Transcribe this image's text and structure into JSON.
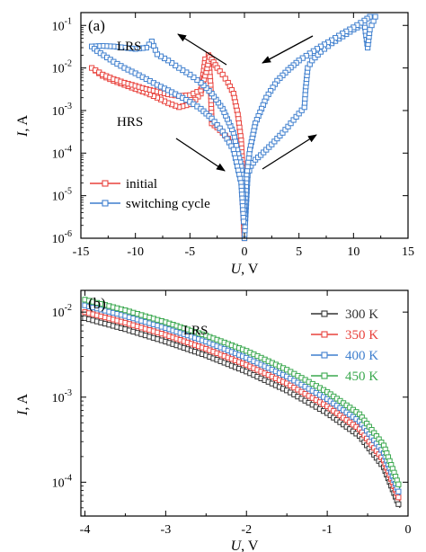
{
  "chart_data": [
    {
      "panel": "(a)",
      "type": "line",
      "y_scale": "log",
      "xlabel_italic": "U",
      "xlabel_rest": ", V",
      "ylabel_italic": "I",
      "ylabel_rest": ", A",
      "xlim": [
        -15,
        15
      ],
      "ylim": [
        1e-06,
        0.2
      ],
      "xticks": [
        -15,
        -10,
        -5,
        0,
        5,
        10,
        15
      ],
      "xtick_labels": [
        "-15",
        "-10",
        "-5",
        "0",
        "5",
        "10",
        "15"
      ],
      "yticks": [
        1e-06,
        1e-05,
        0.0001,
        0.001,
        0.01,
        0.1
      ],
      "ytick_base": "10",
      "ytick_exps": [
        "-6",
        "-5",
        "-4",
        "-3",
        "-2",
        "-1"
      ],
      "annotations": [
        "LRS",
        "HRS"
      ],
      "legend_position": "bottom-left",
      "series": [
        {
          "name": "initial",
          "color": "#e8423c",
          "x": [
            0,
            -0.3,
            -0.6,
            -1.0,
            -1.5,
            -2.0,
            -2.5,
            -3.0,
            -3.1,
            -3.3,
            -3.6,
            -4.0,
            -4.5,
            -5.0,
            -6.0,
            -7.0,
            -8.0,
            -9.0,
            -10.0,
            -11.0,
            -12.0,
            -13.0,
            -14.0,
            -13.0,
            -12.0,
            -11.0,
            -10.0,
            -9.0,
            -8.0,
            -7.0,
            -6.0,
            -5.0,
            -4.0,
            -3.5,
            -3.2,
            -3.0,
            -2.5,
            -2.0,
            -1.5,
            -1.0,
            -0.6,
            -0.3,
            -0.05
          ],
          "y": [
            1e-06,
            3e-05,
            8e-05,
            0.00015,
            0.00022,
            0.0003,
            0.0004,
            0.0005,
            0.004,
            0.02,
            0.016,
            0.0025,
            0.0018,
            0.0014,
            0.0012,
            0.0015,
            0.002,
            0.0026,
            0.0032,
            0.004,
            0.005,
            0.0065,
            0.01,
            0.007,
            0.0055,
            0.0045,
            0.0038,
            0.0032,
            0.0028,
            0.0024,
            0.0022,
            0.0023,
            0.003,
            0.008,
            0.018,
            0.016,
            0.01,
            0.007,
            0.0045,
            0.0025,
            0.0008,
            0.0002,
            1e-05
          ]
        },
        {
          "name": "switching cycle",
          "color": "#3f7fce",
          "x": [
            0,
            0.3,
            0.6,
            1.0,
            1.5,
            2.0,
            2.5,
            3.0,
            3.5,
            4.0,
            4.5,
            5.0,
            5.5,
            5.6,
            5.8,
            6.2,
            7.0,
            8.0,
            9.0,
            10.0,
            11.0,
            11.3,
            11.5,
            12.0,
            11.5,
            11.0,
            10.0,
            9.0,
            8.0,
            7.0,
            6.0,
            5.0,
            4.0,
            3.0,
            2.0,
            1.0,
            0.5,
            0.2,
            0.05,
            -0.3,
            -1.0,
            -2.0,
            -3.0,
            -4.0,
            -5.0,
            -6.0,
            -7.0,
            -8.0,
            -8.5,
            -9.0,
            -10.0,
            -11.0,
            -12.0,
            -13.0,
            -14.0,
            -13.5,
            -12.0,
            -11.0,
            -10.0,
            -9.0,
            -8.0,
            -7.0,
            -6.0,
            -5.0,
            -4.0,
            -3.0,
            -2.0,
            -1.0,
            -0.3,
            -0.05
          ],
          "y": [
            1e-06,
            3e-05,
            5e-05,
            7e-05,
            9e-05,
            0.00012,
            0.00016,
            0.00022,
            0.0003,
            0.00042,
            0.0006,
            0.00085,
            0.0012,
            0.003,
            0.01,
            0.015,
            0.024,
            0.038,
            0.055,
            0.08,
            0.11,
            0.03,
            0.08,
            0.16,
            0.16,
            0.13,
            0.09,
            0.065,
            0.045,
            0.032,
            0.022,
            0.015,
            0.009,
            0.005,
            0.002,
            0.0005,
            0.00012,
            3e-05,
            3e-06,
            5e-05,
            0.0003,
            0.0011,
            0.0025,
            0.0045,
            0.007,
            0.01,
            0.015,
            0.021,
            0.042,
            0.03,
            0.028,
            0.03,
            0.032,
            0.033,
            0.032,
            0.025,
            0.014,
            0.01,
            0.0075,
            0.0055,
            0.004,
            0.003,
            0.0022,
            0.0016,
            0.0011,
            0.00065,
            0.00032,
            0.00012,
            2e-05,
            2e-06
          ]
        }
      ]
    },
    {
      "panel": "(b)",
      "type": "line",
      "y_scale": "log",
      "xlabel_italic": "U",
      "xlabel_rest": ", V",
      "ylabel_italic": "I",
      "ylabel_rest": ", A",
      "xlim": [
        -4.05,
        0
      ],
      "ylim": [
        4e-05,
        0.018
      ],
      "xticks": [
        -4,
        -3,
        -2,
        -1,
        0
      ],
      "xtick_labels": [
        "-4",
        "-3",
        "-2",
        "-1",
        "0"
      ],
      "yticks": [
        0.0001,
        0.001,
        0.01
      ],
      "ytick_base": "10",
      "ytick_exps": [
        "-4",
        "-3",
        "-2"
      ],
      "annotations": [
        "LRS"
      ],
      "legend_position": "top-right",
      "series": [
        {
          "name": "300 K",
          "color": "#333333",
          "x": [
            -4.0,
            -3.5,
            -3.0,
            -2.5,
            -2.0,
            -1.5,
            -1.0,
            -0.6,
            -0.3,
            -0.1
          ],
          "y": [
            0.0085,
            0.0063,
            0.0045,
            0.0031,
            0.002,
            0.0012,
            0.00065,
            0.00035,
            0.00015,
            5e-05
          ]
        },
        {
          "name": "350 K",
          "color": "#e8423c",
          "x": [
            -4.0,
            -3.5,
            -3.0,
            -2.5,
            -2.0,
            -1.5,
            -1.0,
            -0.6,
            -0.3,
            -0.1
          ],
          "y": [
            0.01,
            0.0075,
            0.0054,
            0.0037,
            0.0024,
            0.00145,
            0.00078,
            0.00042,
            0.00018,
            6e-05
          ]
        },
        {
          "name": "400 K",
          "color": "#3f7fce",
          "x": [
            -4.0,
            -3.5,
            -3.0,
            -2.5,
            -2.0,
            -1.5,
            -1.0,
            -0.6,
            -0.3,
            -0.1
          ],
          "y": [
            0.012,
            0.009,
            0.0065,
            0.0045,
            0.0029,
            0.00175,
            0.00095,
            0.00052,
            0.00022,
            7e-05
          ]
        },
        {
          "name": "450 K",
          "color": "#3aa84e",
          "x": [
            -4.0,
            -3.5,
            -3.0,
            -2.5,
            -2.0,
            -1.5,
            -1.0,
            -0.6,
            -0.3,
            -0.1
          ],
          "y": [
            0.014,
            0.0105,
            0.0076,
            0.0053,
            0.0035,
            0.0021,
            0.00115,
            0.00063,
            0.00027,
            8.5e-05
          ]
        }
      ]
    }
  ]
}
